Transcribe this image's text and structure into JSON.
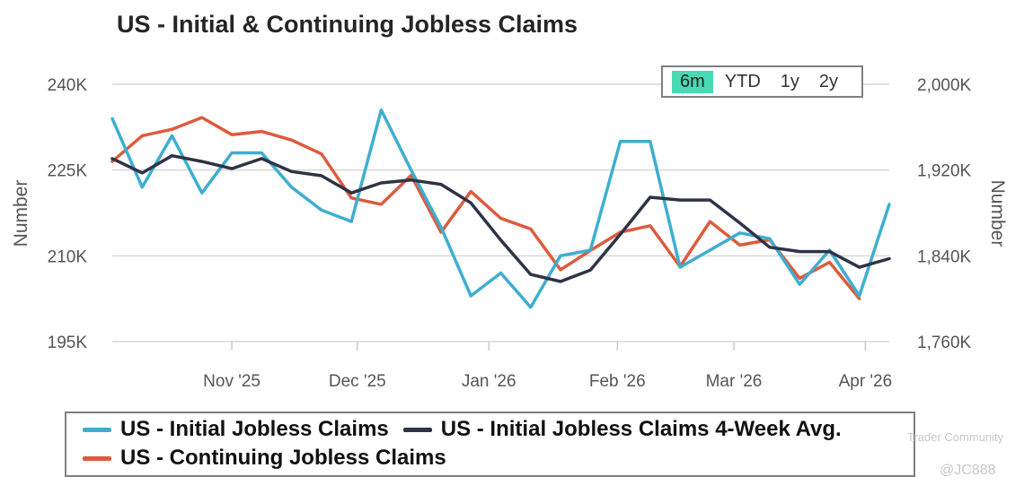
{
  "chart_data": {
    "type": "line",
    "title": "US - Initial & Continuing Jobless Claims",
    "ylabel_left": "Number",
    "ylabel_right": "Number",
    "left_axis": {
      "min": 195000,
      "max": 240000,
      "ticks": [
        "195K",
        "210K",
        "225K",
        "240K"
      ],
      "tick_values": [
        195000,
        210000,
        225000,
        240000
      ]
    },
    "right_axis": {
      "min": 1760000,
      "max": 2000000,
      "ticks": [
        "1,760K",
        "1,840K",
        "1,920K",
        "2,000K"
      ],
      "tick_values": [
        1760000,
        1840000,
        1920000,
        2000000
      ]
    },
    "x_ticks": [
      {
        "label": "Nov '25",
        "week_index": 4
      },
      {
        "label": "Dec '25",
        "week_index": 8.2
      },
      {
        "label": "Jan '26",
        "week_index": 12.6
      },
      {
        "label": "Feb '26",
        "week_index": 16.9
      },
      {
        "label": "Mar '26",
        "week_index": 20.8
      },
      {
        "label": "Apr '26",
        "week_index": 25.2
      }
    ],
    "weeks": 26,
    "series": [
      {
        "name": "US - Initial Jobless Claims",
        "axis": "left",
        "color": "#3eaed0",
        "values": [
          234000,
          222000,
          231000,
          221000,
          228000,
          228000,
          222000,
          218000,
          216000,
          235500,
          225000,
          215000,
          203000,
          207000,
          201000,
          210000,
          211000,
          230000,
          230000,
          208000,
          211000,
          214000,
          213000,
          205000,
          211000,
          203000,
          219000
        ]
      },
      {
        "name": "US - Initial Jobless Claims 4-Week Avg.",
        "axis": "left",
        "color": "#2e3446",
        "values": [
          227000,
          224500,
          227500,
          226500,
          225250,
          227000,
          224750,
          224000,
          221000,
          222750,
          223250,
          222500,
          219250,
          212750,
          206750,
          205500,
          207500,
          213750,
          220250,
          219750,
          219750,
          215750,
          211500,
          210750,
          210750,
          208000,
          209500
        ]
      },
      {
        "name": "US - Continuing Jobless Claims",
        "axis": "right",
        "color": "#dd5b3d",
        "values": [
          1928000,
          1952000,
          1958000,
          1969000,
          1953000,
          1956000,
          1948000,
          1935000,
          1894000,
          1888000,
          1915000,
          1862000,
          1900000,
          1875000,
          1865000,
          1827000,
          1845000,
          1862000,
          1868000,
          1830000,
          1872000,
          1850000,
          1855000,
          1819000,
          1834000,
          1800000
        ]
      }
    ]
  },
  "range_selector": {
    "options": [
      "6m",
      "YTD",
      "1y",
      "2y"
    ],
    "active": "6m"
  },
  "legend": {
    "initial": "US - Initial Jobless Claims",
    "avg": "US - Initial Jobless Claims 4-Week Avg.",
    "continuing": "US - Continuing Jobless Claims"
  },
  "watermark": {
    "line1": "Trader Community",
    "line2": "@JC888"
  }
}
